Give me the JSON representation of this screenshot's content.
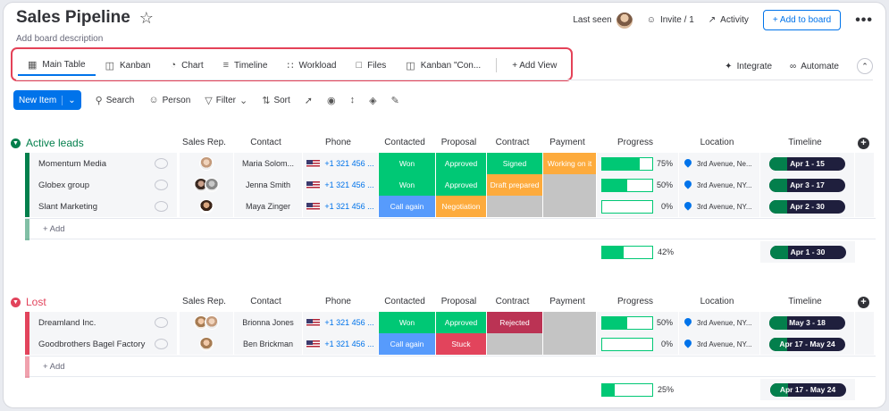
{
  "board": {
    "title": "Sales Pipeline",
    "description": "Add board description"
  },
  "header": {
    "last_seen": "Last seen",
    "invite": "Invite / 1",
    "activity": "Activity",
    "add_to_board": "+ Add to board",
    "more": "•••"
  },
  "views": {
    "tabs": [
      {
        "label": "Main Table",
        "icon": "table-icon"
      },
      {
        "label": "Kanban",
        "icon": "kanban-icon"
      },
      {
        "label": "Chart",
        "icon": "chart-icon"
      },
      {
        "label": "Timeline",
        "icon": "timeline-icon"
      },
      {
        "label": "Workload",
        "icon": "workload-icon"
      },
      {
        "label": "Files",
        "icon": "files-icon"
      },
      {
        "label": "Kanban \"Con...",
        "icon": "kanban-icon"
      }
    ],
    "add_view": "+ Add View",
    "integrate": "Integrate",
    "automate": "Automate"
  },
  "toolbar": {
    "new_item": "New Item",
    "search": "Search",
    "person": "Person",
    "filter": "Filter",
    "sort": "Sort"
  },
  "columns": [
    "Sales Rep.",
    "Contact",
    "Phone",
    "Contacted",
    "Proposal",
    "Contract",
    "Payment",
    "Progress",
    "Location",
    "Timeline"
  ],
  "colors": {
    "green": "#00c875",
    "blue": "#579bfc",
    "orange": "#fdab3d",
    "red": "#e2445c",
    "darkred": "#bb3354",
    "grey": "#c4c4c4",
    "active_group": "#037f4c",
    "lost_group": "#e2445c"
  },
  "groups": [
    {
      "title": "Active leads",
      "color": "#037f4c",
      "add_label": "+ Add",
      "rows": [
        {
          "name": "Momentum Media",
          "contact": "Maria Solom...",
          "phone": "+1 321 456 ...",
          "contacted": "Won",
          "contacted_color": "#00c875",
          "proposal": "Approved",
          "proposal_color": "#00c875",
          "contract": "Signed",
          "contract_color": "#00c875",
          "payment": "Working on it",
          "payment_color": "#fdab3d",
          "progress": 75,
          "progress_label": "75%",
          "location": "3rd Avenue, Ne...",
          "timeline": "Apr 1 - 15"
        },
        {
          "name": "Globex group",
          "contact": "Jenna Smith",
          "phone": "+1 321 456 ...",
          "contacted": "Won",
          "contacted_color": "#00c875",
          "proposal": "Approved",
          "proposal_color": "#00c875",
          "contract": "Draft prepared",
          "contract_color": "#fdab3d",
          "payment": "",
          "payment_color": "#c4c4c4",
          "progress": 50,
          "progress_label": "50%",
          "location": "3rd Avenue, NY...",
          "timeline": "Apr 3 - 17"
        },
        {
          "name": "Slant Marketing",
          "contact": "Maya Zinger",
          "phone": "+1 321 456 ...",
          "contacted": "Call again",
          "contacted_color": "#579bfc",
          "proposal": "Negotiation",
          "proposal_color": "#fdab3d",
          "contract": "",
          "contract_color": "#c4c4c4",
          "payment": "",
          "payment_color": "#c4c4c4",
          "progress": 0,
          "progress_label": "0%",
          "location": "3rd Avenue, NY...",
          "timeline": "Apr 2 - 30"
        }
      ],
      "summary_progress": 42,
      "summary_label": "42%",
      "summary_timeline": "Apr 1 - 30"
    },
    {
      "title": "Lost",
      "color": "#e2445c",
      "add_label": "+ Add",
      "rows": [
        {
          "name": "Dreamland Inc.",
          "contact": "Brionna Jones",
          "phone": "+1 321 456 ...",
          "contacted": "Won",
          "contacted_color": "#00c875",
          "proposal": "Approved",
          "proposal_color": "#00c875",
          "contract": "Rejected",
          "contract_color": "#bb3354",
          "payment": "",
          "payment_color": "#c4c4c4",
          "progress": 50,
          "progress_label": "50%",
          "location": "3rd Avenue, NY...",
          "timeline": "May 3 - 18"
        },
        {
          "name": "Goodbrothers Bagel Factory",
          "contact": "Ben Brickman",
          "phone": "+1 321 456 ...",
          "contacted": "Call again",
          "contacted_color": "#579bfc",
          "proposal": "Stuck",
          "proposal_color": "#e2445c",
          "contract": "",
          "contract_color": "#c4c4c4",
          "payment": "",
          "payment_color": "#c4c4c4",
          "progress": 0,
          "progress_label": "0%",
          "location": "3rd Avenue, NY...",
          "timeline": "Apr 17 - May 24"
        }
      ],
      "summary_progress": 25,
      "summary_label": "25%",
      "summary_timeline": "Apr 17 - May 24"
    }
  ]
}
